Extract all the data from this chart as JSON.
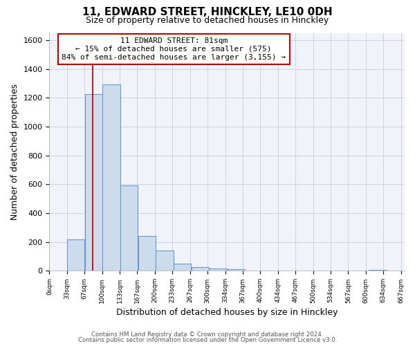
{
  "title_line1": "11, EDWARD STREET, HINCKLEY, LE10 0DH",
  "title_line2": "Size of property relative to detached houses in Hinckley",
  "xlabel": "Distribution of detached houses by size in Hinckley",
  "ylabel": "Number of detached properties",
  "bar_values": [
    0,
    220,
    1225,
    1295,
    590,
    240,
    140,
    50,
    25,
    15,
    10,
    0,
    0,
    0,
    0,
    0,
    0,
    0,
    5,
    0
  ],
  "bin_starts": [
    0,
    33,
    67,
    100,
    133,
    167,
    200,
    233,
    267,
    300,
    334,
    367,
    400,
    434,
    467,
    500,
    534,
    567,
    600,
    634
  ],
  "bin_width": 33,
  "tick_labels": [
    "0sqm",
    "33sqm",
    "67sqm",
    "100sqm",
    "133sqm",
    "167sqm",
    "200sqm",
    "233sqm",
    "267sqm",
    "300sqm",
    "334sqm",
    "367sqm",
    "400sqm",
    "434sqm",
    "467sqm",
    "500sqm",
    "534sqm",
    "567sqm",
    "600sqm",
    "634sqm",
    "667sqm"
  ],
  "bar_color": "#cddcec",
  "bar_edge_color": "#6699cc",
  "ylim": [
    0,
    1650
  ],
  "yticks": [
    0,
    200,
    400,
    600,
    800,
    1000,
    1200,
    1400,
    1600
  ],
  "red_line_x": 81,
  "annotation_title": "11 EDWARD STREET: 81sqm",
  "annotation_line1": "← 15% of detached houses are smaller (575)",
  "annotation_line2": "84% of semi-detached houses are larger (3,155) →",
  "footer_line1": "Contains HM Land Registry data © Crown copyright and database right 2024.",
  "footer_line2": "Contains public sector information licensed under the Open Government Licence v3.0.",
  "bg_color": "#ffffff",
  "plot_bg_color": "#f0f4fa",
  "grid_color": "#c8cdd8"
}
